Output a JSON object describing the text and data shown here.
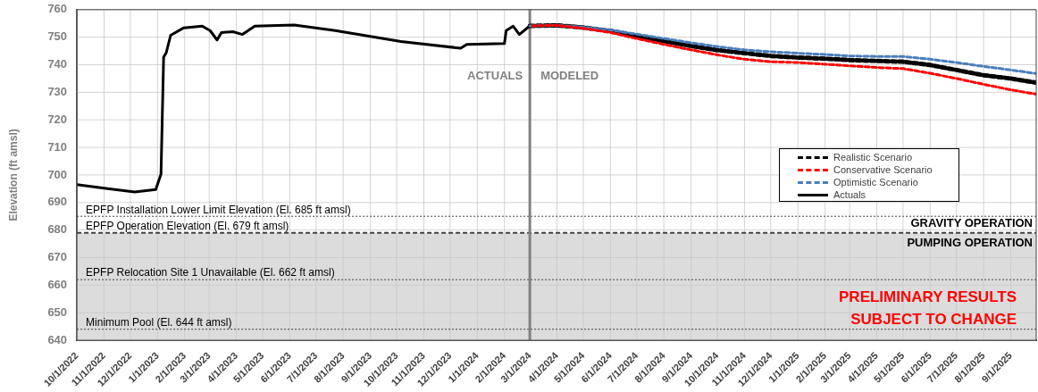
{
  "chart_data": {
    "type": "line",
    "ylabel": "Elevation (ft amsl)",
    "xlim": [
      "2022-10-01",
      "2025-09-30"
    ],
    "xticks": [
      {
        "value": "2022-10-01",
        "label": "10/1/2022"
      },
      {
        "value": "2022-11-01",
        "label": "11/1/2022"
      },
      {
        "value": "2022-12-01",
        "label": "12/1/2022"
      },
      {
        "value": "2023-01-01",
        "label": "1/1/2023"
      },
      {
        "value": "2023-02-01",
        "label": "2/1/2023"
      },
      {
        "value": "2023-03-01",
        "label": "3/1/2023"
      },
      {
        "value": "2023-04-01",
        "label": "4/1/2023"
      },
      {
        "value": "2023-05-01",
        "label": "5/1/2023"
      },
      {
        "value": "2023-06-01",
        "label": "6/1/2023"
      },
      {
        "value": "2023-07-01",
        "label": "7/1/2023"
      },
      {
        "value": "2023-08-01",
        "label": "8/1/2023"
      },
      {
        "value": "2023-09-01",
        "label": "9/1/2023"
      },
      {
        "value": "2023-10-01",
        "label": "10/1/2023"
      },
      {
        "value": "2023-11-01",
        "label": "11/1/2023"
      },
      {
        "value": "2023-12-01",
        "label": "12/1/2023"
      },
      {
        "value": "2024-01-01",
        "label": "1/1/2024"
      },
      {
        "value": "2024-02-01",
        "label": "2/1/2024"
      },
      {
        "value": "2024-03-01",
        "label": "3/1/2024"
      },
      {
        "value": "2024-04-01",
        "label": "4/1/2024"
      },
      {
        "value": "2024-05-01",
        "label": "5/1/2024"
      },
      {
        "value": "2024-06-01",
        "label": "6/1/2024"
      },
      {
        "value": "2024-07-01",
        "label": "7/1/2024"
      },
      {
        "value": "2024-08-01",
        "label": "8/1/2024"
      },
      {
        "value": "2024-09-01",
        "label": "9/1/2024"
      },
      {
        "value": "2024-10-01",
        "label": "10/1/2024"
      },
      {
        "value": "2024-11-01",
        "label": "11/1/2024"
      },
      {
        "value": "2024-12-01",
        "label": "12/1/2024"
      },
      {
        "value": "2025-01-01",
        "label": "1/1/2025"
      },
      {
        "value": "2025-02-01",
        "label": "2/1/2025"
      },
      {
        "value": "2025-03-01",
        "label": "3/1/2025"
      },
      {
        "value": "2025-04-01",
        "label": "4/1/2025"
      },
      {
        "value": "2025-05-01",
        "label": "5/1/2025"
      },
      {
        "value": "2025-06-01",
        "label": "6/1/2025"
      },
      {
        "value": "2025-07-01",
        "label": "7/1/2025"
      },
      {
        "value": "2025-08-01",
        "label": "8/1/2025"
      },
      {
        "value": "2025-09-01",
        "label": "9/1/2025"
      }
    ],
    "ylim": [
      640,
      760
    ],
    "yticks": [
      640,
      650,
      660,
      670,
      680,
      690,
      700,
      710,
      720,
      730,
      740,
      750,
      760
    ],
    "grid": true,
    "legend": "right",
    "marker": "none",
    "series": [
      {
        "name": "Realistic Scenario",
        "color": "#000000",
        "line_style": "dashed",
        "x": [
          "2024-03-01",
          "2024-04-01",
          "2024-05-01",
          "2024-06-01",
          "2024-07-01",
          "2024-08-01",
          "2024-09-01",
          "2024-10-01",
          "2024-11-01",
          "2024-12-01",
          "2025-01-01",
          "2025-02-01",
          "2025-03-01",
          "2025-04-01",
          "2025-05-01",
          "2025-06-01",
          "2025-07-01",
          "2025-08-01",
          "2025-09-01",
          "2025-09-30"
        ],
        "values": [
          754.1,
          754.3,
          753.5,
          752.3,
          750.5,
          748.6,
          746.8,
          745.3,
          744.2,
          743.2,
          742.6,
          742.2,
          741.7,
          741.4,
          741.1,
          739.9,
          738.1,
          736.2,
          735.0,
          733.5
        ]
      },
      {
        "name": "Conservative Scenario",
        "color": "#ff0000",
        "line_style": "dashed",
        "x": [
          "2024-03-01",
          "2024-04-01",
          "2024-05-01",
          "2024-06-01",
          "2024-07-01",
          "2024-08-01",
          "2024-09-01",
          "2024-10-01",
          "2024-11-01",
          "2024-12-01",
          "2025-01-01",
          "2025-02-01",
          "2025-03-01",
          "2025-04-01",
          "2025-05-01",
          "2025-06-01",
          "2025-07-01",
          "2025-08-01",
          "2025-09-01",
          "2025-09-30"
        ],
        "values": [
          754.1,
          754.3,
          753.2,
          751.7,
          749.5,
          747.4,
          745.4,
          743.6,
          742.0,
          741.1,
          740.8,
          740.2,
          739.6,
          739.0,
          738.6,
          736.9,
          735.0,
          732.9,
          730.9,
          729.3
        ]
      },
      {
        "name": "Optimistic Scenario",
        "color": "#4a7ebb",
        "line_style": "dashed",
        "x": [
          "2024-03-01",
          "2024-04-01",
          "2024-05-01",
          "2024-06-01",
          "2024-07-01",
          "2024-08-01",
          "2024-09-01",
          "2024-10-01",
          "2024-11-01",
          "2024-12-01",
          "2025-01-01",
          "2025-02-01",
          "2025-03-01",
          "2025-04-01",
          "2025-05-01",
          "2025-06-01",
          "2025-07-01",
          "2025-08-01",
          "2025-09-01",
          "2025-09-30"
        ],
        "values": [
          754.1,
          754.3,
          753.7,
          752.6,
          751.1,
          749.5,
          748.0,
          746.6,
          745.4,
          744.7,
          744.2,
          743.7,
          743.2,
          743.0,
          743.0,
          742.0,
          740.8,
          739.4,
          738.1,
          736.8
        ]
      },
      {
        "name": "Actuals",
        "color": "#000000",
        "line_style": "solid",
        "x": [
          "2022-10-01",
          "2022-11-05",
          "2022-12-06",
          "2022-12-30",
          "2023-01-05",
          "2023-01-08",
          "2023-01-11",
          "2023-01-16",
          "2023-01-31",
          "2023-02-21",
          "2023-03-02",
          "2023-03-10",
          "2023-03-15",
          "2023-03-28",
          "2023-04-08",
          "2023-04-22",
          "2023-06-06",
          "2023-07-23",
          "2023-10-06",
          "2023-12-13",
          "2023-12-20",
          "2024-02-01",
          "2024-02-03",
          "2024-02-11",
          "2024-02-18",
          "2024-03-01"
        ],
        "values": [
          696.5,
          695.0,
          693.8,
          694.7,
          700.3,
          742.8,
          744.4,
          750.7,
          753.4,
          754.0,
          752.4,
          749.0,
          751.7,
          752.0,
          751.0,
          754.0,
          754.4,
          752.4,
          748.4,
          746.0,
          747.4,
          747.7,
          752.4,
          754.0,
          751.0,
          754.1
        ]
      }
    ],
    "bands": [
      {
        "axis": "y",
        "from": 640,
        "to": 679,
        "color": "#dcdcdc"
      }
    ],
    "ref_lines": [
      {
        "axis": "y",
        "value": 685,
        "label": "EPFP Installation Lower Limit Elevation (El. 685 ft amsl)",
        "color": "#404040",
        "line_style": "dotted"
      },
      {
        "axis": "y",
        "value": 679,
        "label": "EPFP Operation Elevation (El. 679 ft amsl)",
        "color": "#404040",
        "line_style": "dashed"
      },
      {
        "axis": "y",
        "value": 662,
        "label": "EPFP Relocation Site 1 Unavailable (El. 662 ft amsl)",
        "color": "#404040",
        "line_style": "dotted"
      },
      {
        "axis": "y",
        "value": 644,
        "label": "Minimum Pool (El. 644 ft amsl)",
        "color": "#404040",
        "line_style": "dotted"
      },
      {
        "axis": "x",
        "value": "2024-03-01",
        "color": "#808080",
        "line_style": "solid"
      }
    ],
    "annotations": [
      "ACTUALS",
      "MODELED",
      "GRAVITY OPERATION",
      "PUMPING OPERATION",
      "PRELIMINARY RESULTS",
      "SUBJECT TO CHANGE"
    ]
  }
}
